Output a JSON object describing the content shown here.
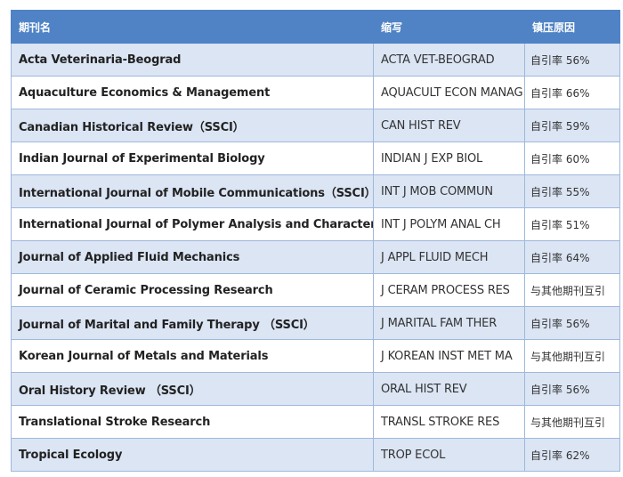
{
  "table": {
    "headers": [
      "期刊名",
      "缩写",
      "镇压原因"
    ],
    "rows": [
      [
        "Acta Veterinaria-Beograd",
        "ACTA VET-BEOGRAD",
        "自引率 56%"
      ],
      [
        "Aquaculture Economics & Management",
        "AQUACULT ECON MANAG",
        "自引率 66%"
      ],
      [
        "Canadian Historical Review（SSCI）",
        "CAN HIST REV",
        "自引率 59%"
      ],
      [
        "Indian Journal of Experimental Biology",
        "INDIAN J EXP BIOL",
        "自引率 60%"
      ],
      [
        "International Journal of Mobile Communications（SSCI）",
        "INT J MOB COMMUN",
        "自引率 55%"
      ],
      [
        "International Journal of Polymer Analysis and Characterization",
        "INT J POLYM ANAL CH",
        "自引率 51%"
      ],
      [
        "Journal of Applied Fluid Mechanics",
        "J APPL FLUID MECH",
        "自引率 64%"
      ],
      [
        "Journal of Ceramic Processing Research",
        "J CERAM PROCESS RES",
        "与其他期刊互引"
      ],
      [
        "Journal of Marital and Family Therapy （SSCI）",
        "J MARITAL FAM THER",
        "自引率 56%"
      ],
      [
        "Korean Journal of Metals and Materials",
        "J KOREAN INST MET MA",
        "与其他期刊互引"
      ],
      [
        "Oral History Review （SSCI）",
        "ORAL HIST REV",
        "自引率 56%"
      ],
      [
        "Translational Stroke Research",
        "TRANSL STROKE RES",
        "与其他期刊互引"
      ],
      [
        "Tropical Ecology",
        "TROP ECOL",
        "自引率 62%"
      ]
    ]
  }
}
